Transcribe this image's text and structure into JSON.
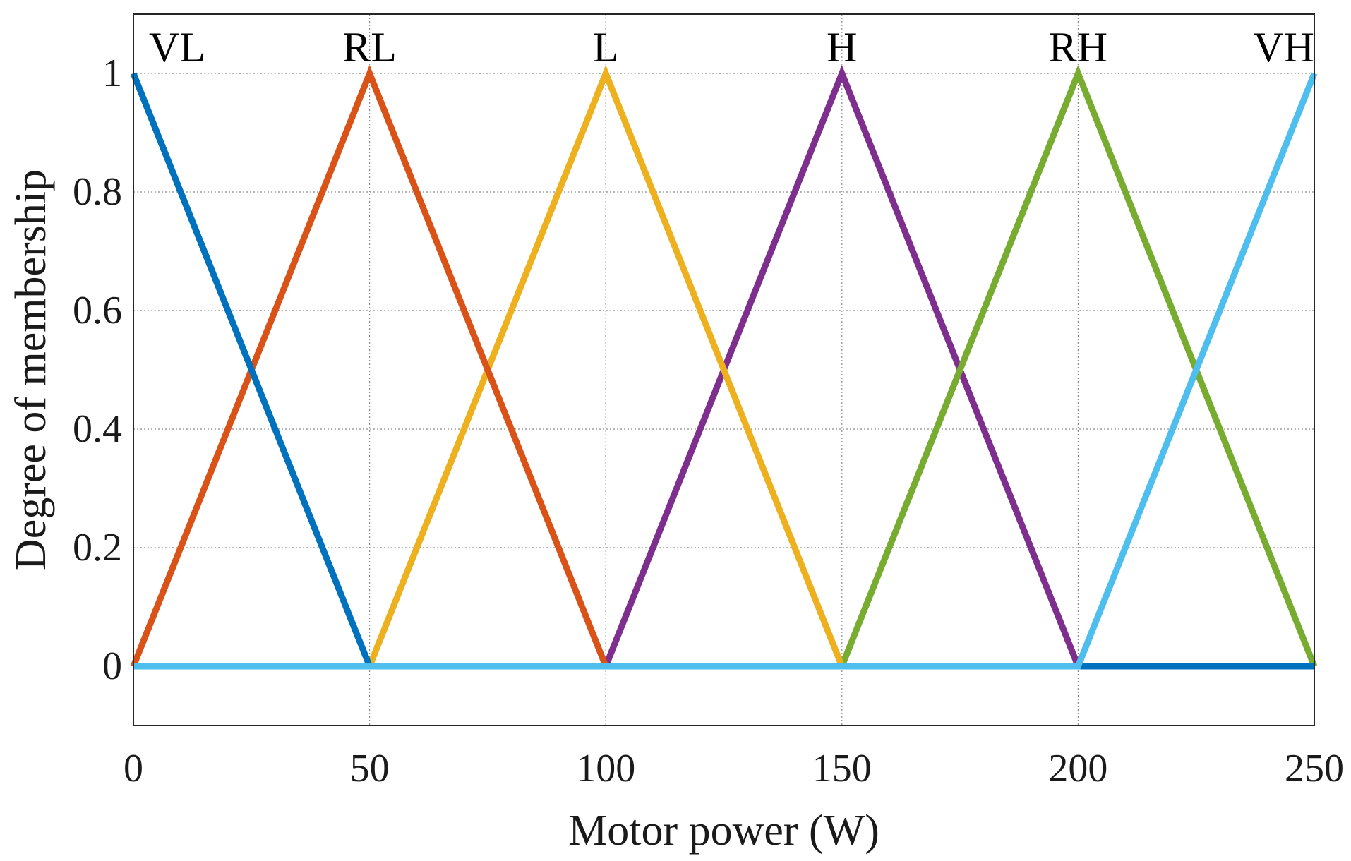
{
  "chart_data": {
    "type": "line",
    "title": "",
    "xlabel": "Motor power (W)",
    "ylabel": "Degree of membership",
    "xlim": [
      0,
      250
    ],
    "ylim": [
      -0.1,
      1.1
    ],
    "x_ticks": [
      0,
      50,
      100,
      150,
      200,
      250
    ],
    "x_tick_labels": [
      "0",
      "50",
      "100",
      "150",
      "200",
      "250"
    ],
    "y_ticks": [
      0,
      0.2,
      0.4,
      0.6,
      0.8,
      1
    ],
    "y_tick_labels": [
      "0",
      "0.2",
      "0.4",
      "0.6",
      "0.8",
      "1"
    ],
    "grid": true,
    "series": [
      {
        "name": "H",
        "color": "#7E2F8E",
        "x": [
          0,
          100,
          150,
          200,
          250
        ],
        "y": [
          0,
          0,
          1,
          0,
          0
        ]
      },
      {
        "name": "RH",
        "color": "#77AC30",
        "x": [
          0,
          150,
          200,
          250
        ],
        "y": [
          0,
          0,
          1,
          0
        ]
      },
      {
        "name": "L",
        "color": "#EDB120",
        "x": [
          0,
          50,
          100,
          150,
          250
        ],
        "y": [
          0,
          0,
          1,
          0,
          0
        ]
      },
      {
        "name": "RL",
        "color": "#D95319",
        "x": [
          0,
          50,
          100,
          250
        ],
        "y": [
          0,
          1,
          0,
          0
        ]
      },
      {
        "name": "VL",
        "color": "#0072BD",
        "x": [
          0,
          50,
          250
        ],
        "y": [
          1,
          0,
          0
        ]
      },
      {
        "name": "VH",
        "color": "#4DBEEE",
        "x": [
          0,
          200,
          250
        ],
        "y": [
          0,
          0,
          1
        ]
      }
    ],
    "annotations": [
      {
        "text": "VL",
        "x": 0,
        "y": 1.02,
        "anchor": "start"
      },
      {
        "text": "RL",
        "x": 50,
        "y": 1.02,
        "anchor": "middle"
      },
      {
        "text": "L",
        "x": 100,
        "y": 1.02,
        "anchor": "middle"
      },
      {
        "text": "H",
        "x": 150,
        "y": 1.02,
        "anchor": "middle"
      },
      {
        "text": "RH",
        "x": 200,
        "y": 1.02,
        "anchor": "middle"
      },
      {
        "text": "VH",
        "x": 250,
        "y": 1.02,
        "anchor": "end"
      }
    ]
  }
}
